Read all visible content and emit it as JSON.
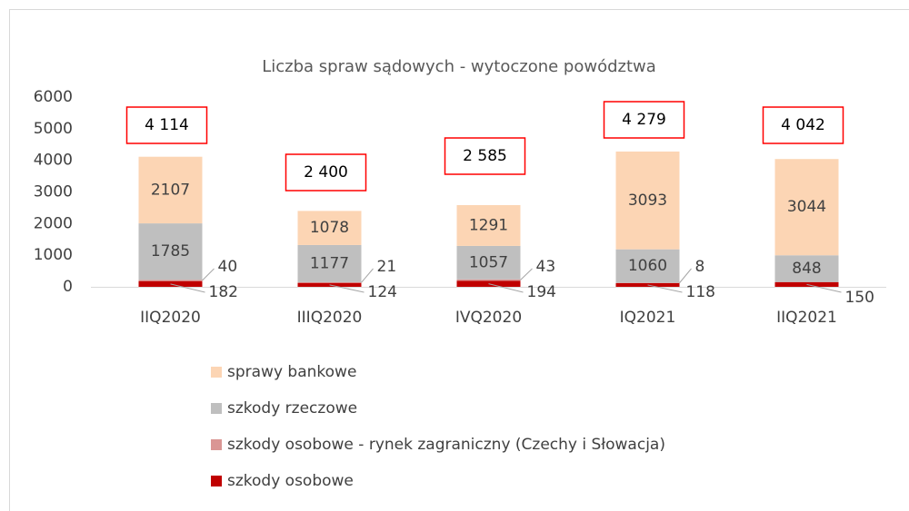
{
  "chart_data": {
    "type": "stacked_bar",
    "title": "Liczba spraw sądowych -  wytoczone powództwa",
    "categories": [
      "IIQ2020",
      "IIIQ2020",
      "IVQ2020",
      "IQ2021",
      "IIQ2021"
    ],
    "series": [
      {
        "name": "szkody osobowe",
        "color": "#c00000",
        "values": [
          182,
          124,
          194,
          118,
          150
        ]
      },
      {
        "name": "szkody osobowe - rynek zagraniczny (Czechy i Słowacja)",
        "color": "#da9694",
        "values": [
          40,
          21,
          43,
          8,
          null
        ]
      },
      {
        "name": "szkody rzeczowe",
        "color": "#bfbfbf",
        "values": [
          1785,
          1177,
          1057,
          1060,
          848
        ]
      },
      {
        "name": "sprawy bankowe",
        "color": "#fcd5b4",
        "values": [
          2107,
          1078,
          1291,
          3093,
          3044
        ]
      }
    ],
    "totals": [
      4114,
      2400,
      2585,
      4279,
      4042
    ],
    "total_labels": [
      "4 114",
      "2 400",
      "2 585",
      "4 279",
      "4 042"
    ],
    "ylim": [
      0,
      6000
    ],
    "yticks": [
      0,
      1000,
      2000,
      3000,
      4000,
      5000,
      6000
    ],
    "grid": false
  }
}
